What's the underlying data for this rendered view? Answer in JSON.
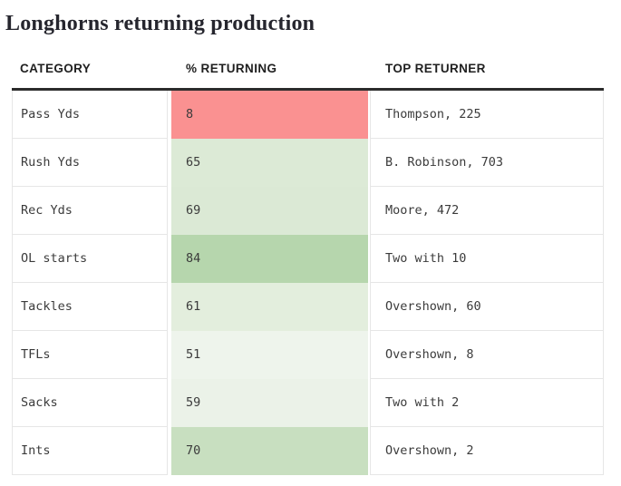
{
  "page": {
    "title": "Longhorns returning production"
  },
  "table": {
    "columns": [
      "CATEGORY",
      "% RETURNING",
      "TOP RETURNER"
    ],
    "rows": [
      {
        "category": "Pass Yds",
        "pct": "8",
        "top": "Thompson, 225",
        "color": "#fa9191"
      },
      {
        "category": "Rush Yds",
        "pct": "65",
        "top": "B. Robinson, 703",
        "color": "#dcead6"
      },
      {
        "category": "Rec Yds",
        "pct": "69",
        "top": "Moore, 472",
        "color": "#dbe9d5"
      },
      {
        "category": "OL starts",
        "pct": "84",
        "top": "Two with 10",
        "color": "#b6d6ad"
      },
      {
        "category": "Tackles",
        "pct": "61",
        "top": "Overshown, 60",
        "color": "#e3eedd"
      },
      {
        "category": "TFLs",
        "pct": "51",
        "top": "Overshown, 8",
        "color": "#eef4ec"
      },
      {
        "category": "Sacks",
        "pct": "59",
        "top": "Two with 2",
        "color": "#ebf2e8"
      },
      {
        "category": "Ints",
        "pct": "70",
        "top": "Overshown, 2",
        "color": "#c8dfc0"
      }
    ]
  },
  "colors": {
    "low_red": "#fa9191",
    "high_green": "#b6d6ad",
    "header_border": "#2b2b2b",
    "grid_line": "#e6e6e6"
  },
  "chart_data": {
    "type": "table",
    "title": "Longhorns returning production",
    "columns": [
      "CATEGORY",
      "% RETURNING",
      "TOP RETURNER"
    ],
    "categories": [
      "Pass Yds",
      "Rush Yds",
      "Rec Yds",
      "OL starts",
      "Tackles",
      "TFLs",
      "Sacks",
      "Ints"
    ],
    "series": [
      {
        "name": "% RETURNING",
        "values": [
          8,
          65,
          69,
          84,
          61,
          51,
          59,
          70
        ]
      },
      {
        "name": "TOP RETURNER",
        "values": [
          "Thompson, 225",
          "B. Robinson, 703",
          "Moore, 472",
          "Two with 10",
          "Overshown, 60",
          "Overshown, 8",
          "Two with 2",
          "Overshown, 2"
        ]
      }
    ],
    "cell_colors": [
      "#fa9191",
      "#dcead6",
      "#dbe9d5",
      "#b6d6ad",
      "#e3eedd",
      "#eef4ec",
      "#ebf2e8",
      "#c8dfc0"
    ],
    "layout_hints": {
      "color_scale": "red = low % returning, darker green = high % returning",
      "grid": "light horizontal and vertical separators, heavy bar under header"
    }
  }
}
